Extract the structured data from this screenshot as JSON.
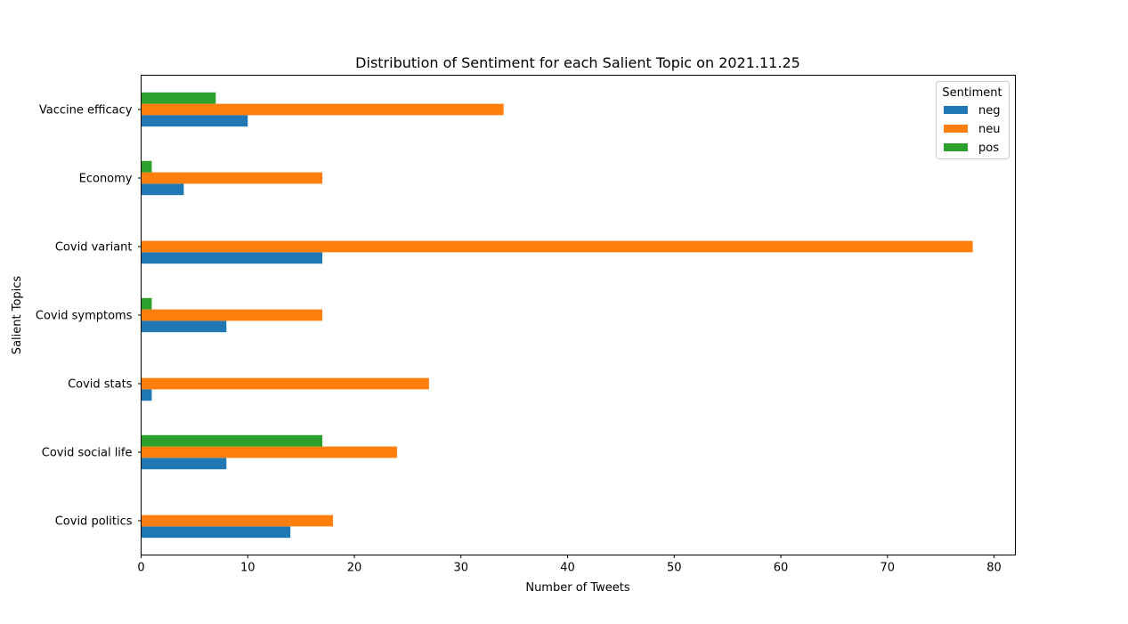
{
  "chart_data": {
    "type": "bar",
    "orientation": "horizontal",
    "title": "Distribution of Sentiment for each Salient Topic on 2021.11.25",
    "xlabel": "Number of Tweets",
    "ylabel": "Salient Topics",
    "xlim": [
      0,
      82
    ],
    "xticks": [
      0,
      10,
      20,
      30,
      40,
      50,
      60,
      70,
      80
    ],
    "grid": false,
    "categories": [
      "Covid politics",
      "Covid social life",
      "Covid stats",
      "Covid symptoms",
      "Covid variant",
      "Economy",
      "Vaccine efficacy"
    ],
    "series": [
      {
        "name": "neg",
        "color": "#1f77b4",
        "values": [
          14,
          8,
          1,
          8,
          17,
          4,
          10
        ]
      },
      {
        "name": "neu",
        "color": "#ff7f0e",
        "values": [
          18,
          24,
          27,
          17,
          78,
          17,
          34
        ]
      },
      {
        "name": "pos",
        "color": "#2ca02c",
        "values": [
          0,
          17,
          0,
          1,
          0,
          1,
          7
        ]
      }
    ],
    "legend": {
      "title": "Sentiment",
      "placement": "top-right"
    }
  }
}
